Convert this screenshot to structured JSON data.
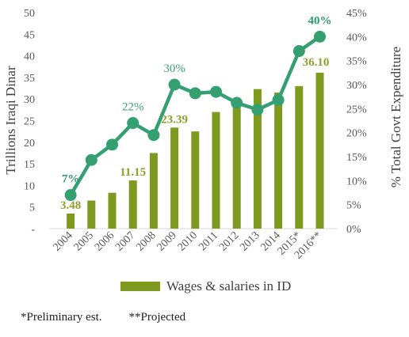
{
  "chart_data": {
    "type": "bar+line",
    "categories": [
      "2004",
      "2005",
      "2006",
      "2007",
      "2008",
      "2009",
      "2010",
      "2011",
      "2012",
      "2013",
      "2014",
      "2015*",
      "2016**"
    ],
    "series": [
      {
        "name": "Wages & salaries in ID",
        "type": "bar",
        "axis": "left",
        "values": [
          3.48,
          6.5,
          8.3,
          11.15,
          17.5,
          23.39,
          22.5,
          27.0,
          29.5,
          32.3,
          31.5,
          33.0,
          36.1
        ],
        "color": "#7e9a1e"
      },
      {
        "type": "line",
        "axis": "right",
        "values": [
          7,
          14.3,
          17.5,
          22,
          19.5,
          30,
          28.2,
          28.5,
          26.2,
          24.8,
          26.8,
          37,
          40
        ],
        "color": "#34a072"
      }
    ],
    "bar_labels": [
      {
        "index": 0,
        "text": "3.48"
      },
      {
        "index": 3,
        "text": "11.15"
      },
      {
        "index": 5,
        "text": "23.39"
      },
      {
        "index": 12,
        "text": "36.10"
      }
    ],
    "line_labels": [
      {
        "index": 0,
        "text": "7%",
        "bold": true
      },
      {
        "index": 3,
        "text": "22%",
        "bold": false
      },
      {
        "index": 5,
        "text": "30%",
        "bold": false
      },
      {
        "index": 12,
        "text": "40%",
        "bold": true
      }
    ],
    "ylabel_left": "Trillions Iraqi Dinar",
    "ylabel_right": "% Total Govt Expenditure",
    "left_ticks": [
      "-",
      "5",
      "10",
      "15",
      "20",
      "25",
      "30",
      "35",
      "40",
      "45",
      "50"
    ],
    "right_ticks": [
      "0%",
      "5%",
      "10%",
      "15%",
      "20%",
      "25%",
      "30%",
      "35%",
      "40%",
      "45%"
    ],
    "ylim_left": [
      0,
      50
    ],
    "ylim_right": [
      0,
      45
    ],
    "grid": false,
    "legend_position": "bottom"
  },
  "legend": {
    "label": "Wages & salaries in ID",
    "color": "#7e9a1e"
  },
  "footnotes": {
    "preliminary": "*Preliminary est.",
    "projected": "**Projected"
  }
}
